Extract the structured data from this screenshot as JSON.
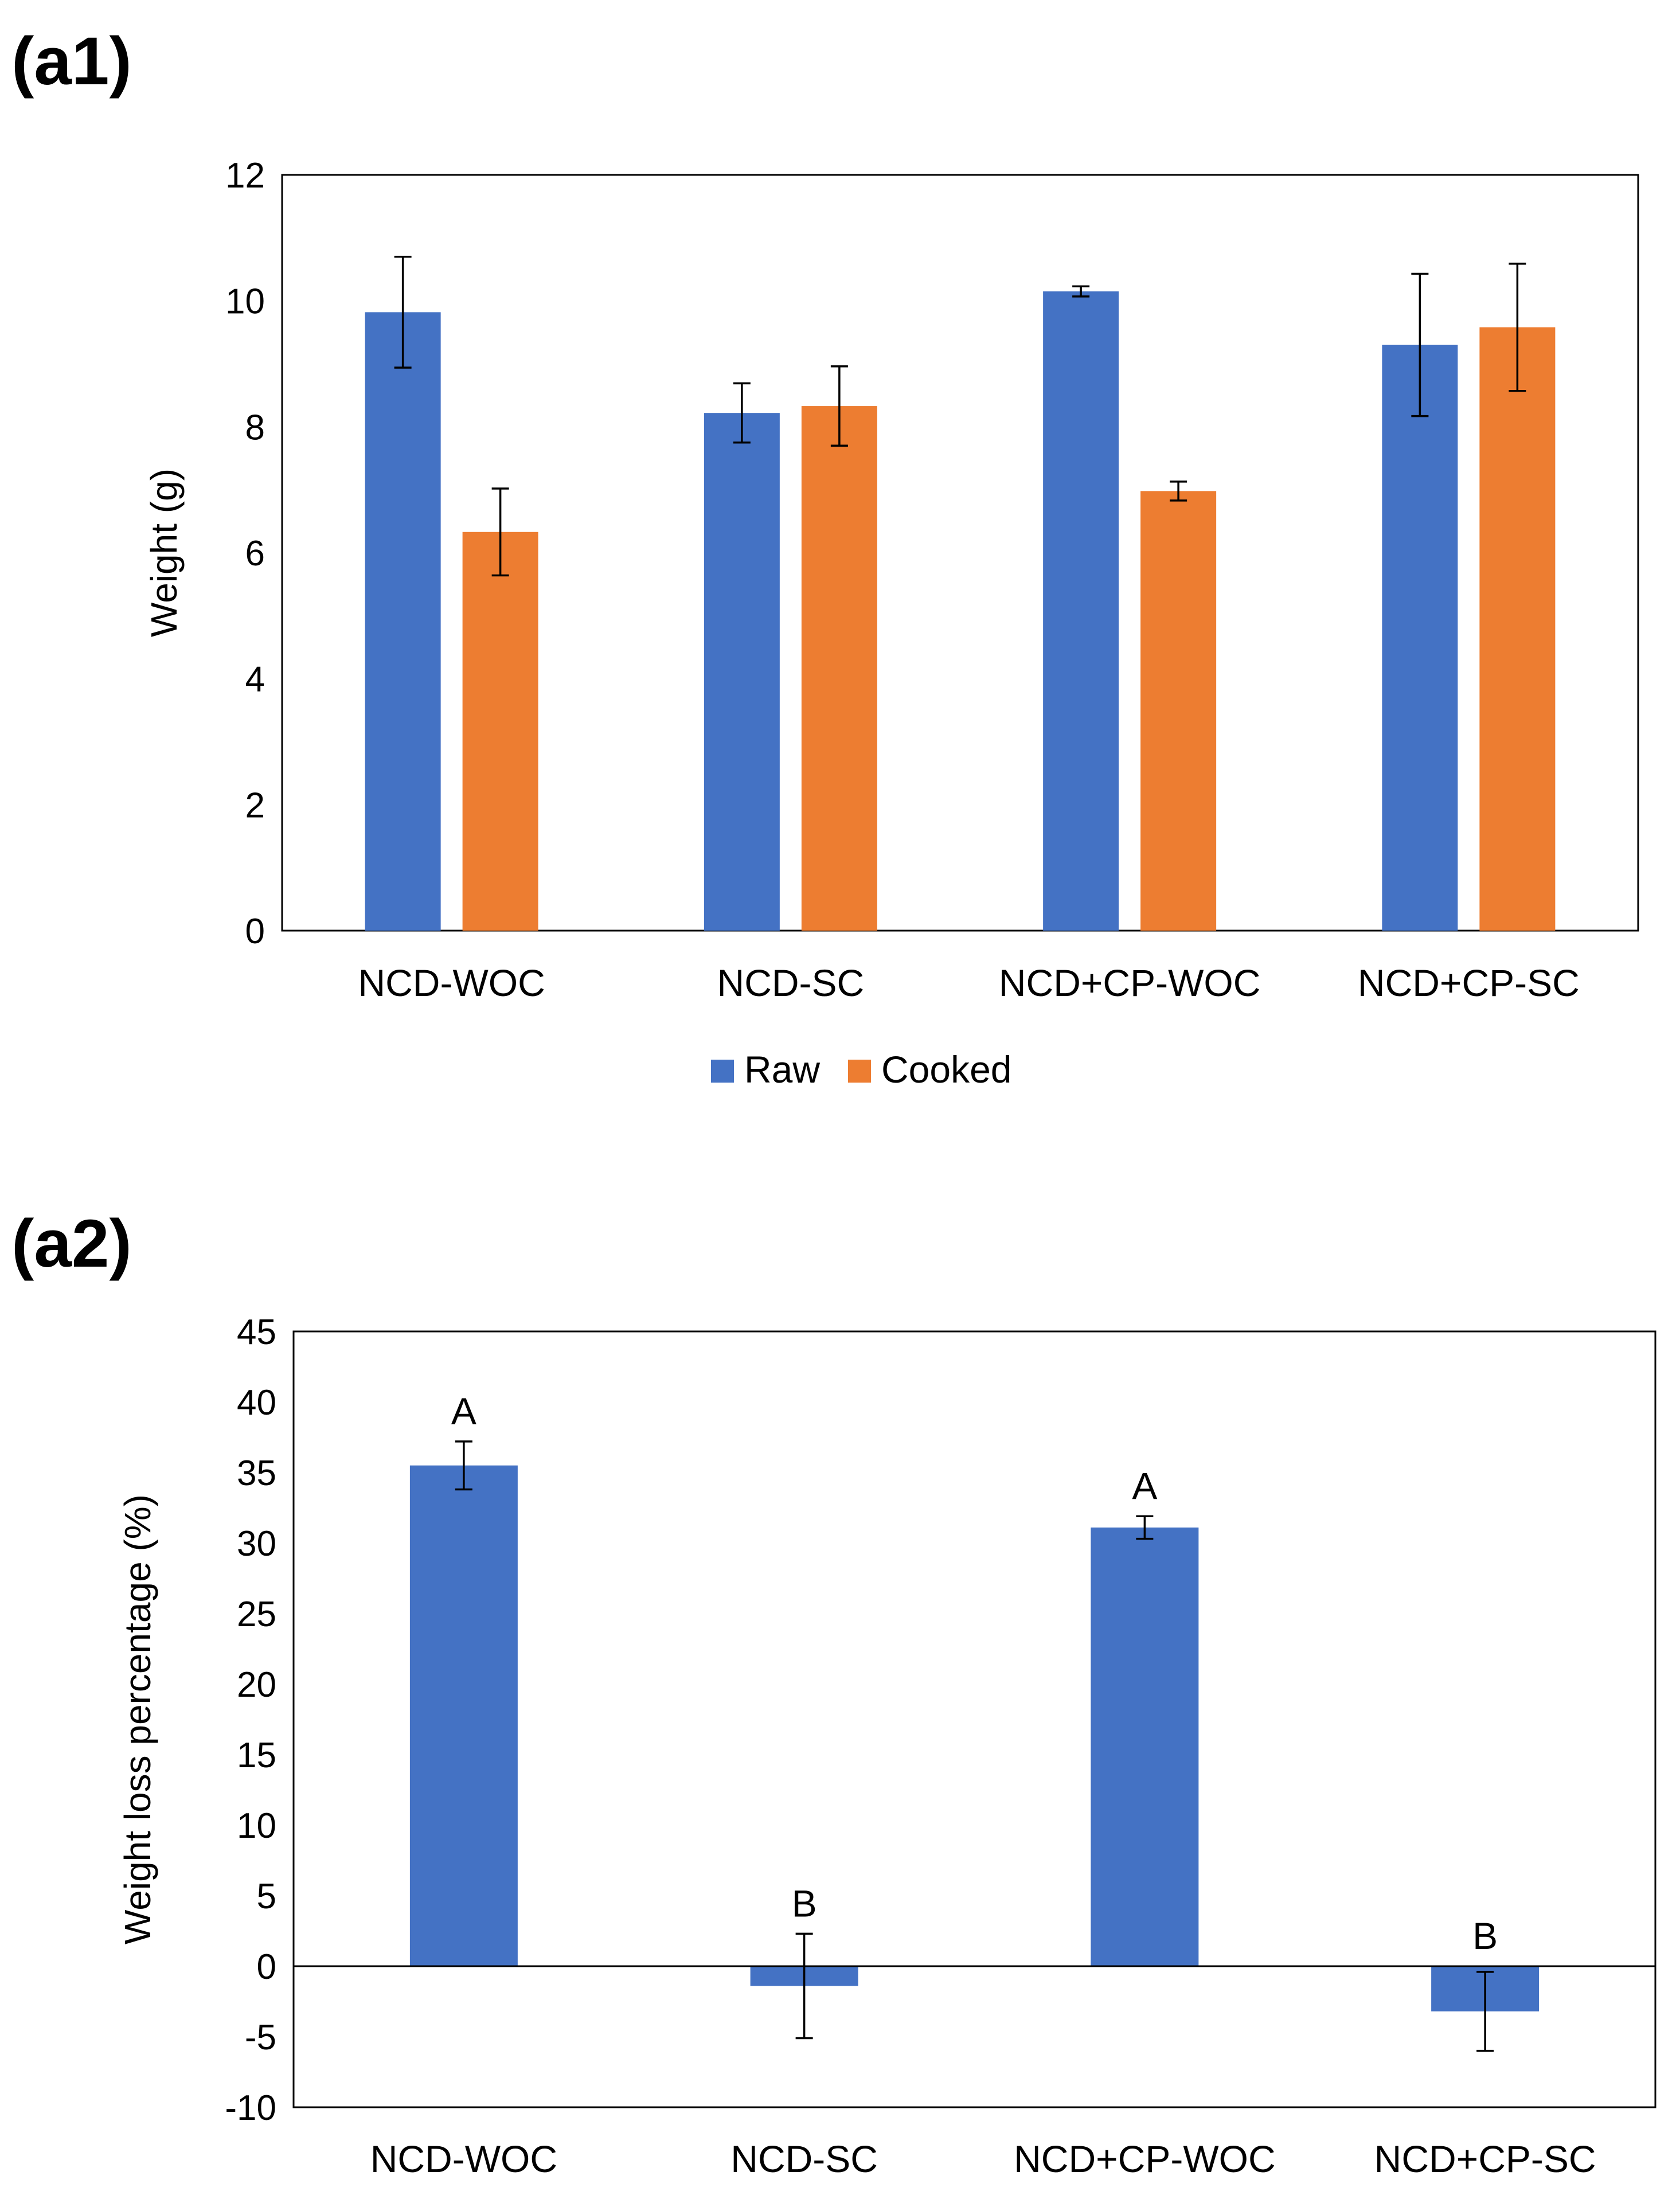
{
  "figure": {
    "panel_a1_label": "(a1)",
    "panel_a2_label": "(a2)"
  },
  "chart_data": [
    {
      "id": "a1",
      "type": "bar",
      "title": "",
      "xlabel": "",
      "ylabel": "Weight (g)",
      "ylim": [
        0,
        12
      ],
      "yticks": [
        0,
        2,
        4,
        6,
        8,
        10,
        12
      ],
      "categories": [
        "NCD-WOC",
        "NCD-SC",
        "NCD+CP-WOC",
        "NCD+CP-SC"
      ],
      "series": [
        {
          "name": "Raw",
          "color": "#4472C4",
          "values": [
            9.82,
            8.22,
            10.15,
            9.3
          ],
          "errors": [
            0.88,
            0.47,
            0.08,
            1.13
          ]
        },
        {
          "name": "Cooked",
          "color": "#ED7D31",
          "values": [
            6.33,
            8.33,
            6.98,
            9.58
          ],
          "errors": [
            0.69,
            0.63,
            0.15,
            1.01
          ]
        }
      ],
      "legend": {
        "position": "bottom",
        "entries": [
          "Raw",
          "Cooked"
        ]
      },
      "grid": false
    },
    {
      "id": "a2",
      "type": "bar",
      "title": "",
      "xlabel": "",
      "ylabel": "Weight loss percentage (%)",
      "ylim": [
        -10,
        45
      ],
      "yticks": [
        -10,
        -5,
        0,
        5,
        10,
        15,
        20,
        25,
        30,
        35,
        40,
        45
      ],
      "categories": [
        "NCD-WOC",
        "NCD-SC",
        "NCD+CP-WOC",
        "NCD+CP-SC"
      ],
      "series": [
        {
          "name": "Weight loss",
          "color": "#4472C4",
          "values": [
            35.5,
            -1.4,
            31.1,
            -3.2
          ],
          "errors": [
            1.7,
            3.7,
            0.8,
            2.8
          ]
        }
      ],
      "annotations": [
        "A",
        "B",
        "A",
        "B"
      ],
      "grid": false
    }
  ]
}
